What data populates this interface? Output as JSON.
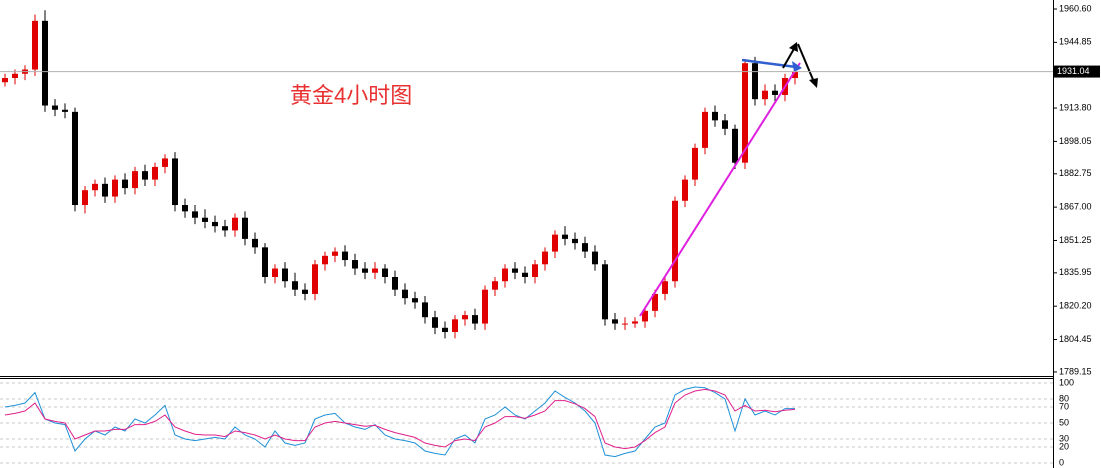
{
  "chart_data": {
    "type": "candlestick",
    "annotation": "黄金4小时图",
    "up_color": "#e00000",
    "down_color": "#000000",
    "ylim": [
      1787.7,
      1964.85
    ],
    "yticks": [
      {
        "value": 1960.6,
        "label": "1960.60"
      },
      1944.85,
      {
        "value": 1913.8,
        "label": "1913.80"
      },
      1898.05,
      1882.75,
      {
        "value": 1867.0,
        "label": "1867.00"
      },
      1851.25,
      1835.95,
      {
        "value": 1820.2,
        "label": "1820.20"
      },
      1804.45,
      1789.15
    ],
    "current_price": 1931.04,
    "open": [
      1926,
      1928,
      1930,
      1932,
      1955,
      1915,
      1913,
      1912,
      1868,
      1875,
      1878,
      1872,
      1880,
      1876,
      1884,
      1880,
      1886,
      1890,
      1868,
      1865,
      1862,
      1860,
      1858,
      1856,
      1862,
      1852,
      1848,
      1834,
      1838,
      1832,
      1828,
      1826,
      1840,
      1844,
      1846,
      1842,
      1838,
      1836,
      1838,
      1834,
      1828,
      1824,
      1822,
      1815,
      1810,
      1808,
      1814,
      1816,
      1812,
      1828,
      1832,
      1838,
      1836,
      1834,
      1840,
      1846,
      1854,
      1852,
      1850,
      1846,
      1840,
      1814,
      1812,
      1812,
      1813,
      1818,
      1826,
      1832,
      1870,
      1880,
      1895,
      1912,
      1908,
      1904,
      1888,
      1935,
      1918,
      1922,
      1920,
      1928
    ],
    "high": [
      1930,
      1932,
      1934,
      1958,
      1960,
      1918,
      1916,
      1914,
      1877,
      1880,
      1881,
      1882,
      1883,
      1886,
      1887,
      1888,
      1892,
      1893,
      1871,
      1868,
      1866,
      1863,
      1861,
      1864,
      1865,
      1855,
      1850,
      1840,
      1841,
      1836,
      1831,
      1842,
      1846,
      1848,
      1849,
      1845,
      1841,
      1841,
      1840,
      1837,
      1831,
      1827,
      1825,
      1818,
      1813,
      1816,
      1818,
      1819,
      1830,
      1834,
      1840,
      1841,
      1839,
      1842,
      1848,
      1856,
      1858,
      1855,
      1853,
      1849,
      1842,
      1817,
      1815,
      1815,
      1820,
      1828,
      1834,
      1872,
      1882,
      1897,
      1914,
      1915,
      1911,
      1906,
      1937,
      1938,
      1925,
      1925,
      1930,
      1934
    ],
    "low": [
      1924,
      1925,
      1927,
      1929,
      1912,
      1910,
      1909,
      1865,
      1864,
      1872,
      1869,
      1869,
      1873,
      1873,
      1877,
      1877,
      1883,
      1865,
      1862,
      1859,
      1857,
      1855,
      1853,
      1853,
      1849,
      1845,
      1831,
      1831,
      1829,
      1825,
      1823,
      1823,
      1837,
      1841,
      1839,
      1835,
      1833,
      1833,
      1831,
      1825,
      1821,
      1819,
      1812,
      1807,
      1805,
      1805,
      1811,
      1809,
      1809,
      1825,
      1829,
      1833,
      1831,
      1831,
      1837,
      1843,
      1849,
      1847,
      1843,
      1837,
      1811,
      1809,
      1809,
      1810,
      1810,
      1815,
      1823,
      1829,
      1867,
      1877,
      1892,
      1905,
      1901,
      1885,
      1885,
      1915,
      1915,
      1917,
      1917,
      1925
    ],
    "close": [
      1928,
      1930,
      1932,
      1955,
      1915,
      1913,
      1912,
      1868,
      1875,
      1878,
      1872,
      1880,
      1876,
      1884,
      1880,
      1886,
      1890,
      1868,
      1865,
      1862,
      1860,
      1858,
      1856,
      1862,
      1852,
      1848,
      1834,
      1838,
      1832,
      1828,
      1826,
      1840,
      1844,
      1846,
      1842,
      1838,
      1836,
      1838,
      1834,
      1828,
      1824,
      1822,
      1815,
      1810,
      1808,
      1814,
      1816,
      1812,
      1828,
      1832,
      1838,
      1836,
      1834,
      1840,
      1846,
      1854,
      1852,
      1850,
      1846,
      1840,
      1814,
      1812,
      1812,
      1813,
      1818,
      1826,
      1832,
      1870,
      1880,
      1895,
      1912,
      1908,
      1904,
      1888,
      1935,
      1918,
      1922,
      1920,
      1928,
      1931
    ],
    "indicator": {
      "ylim": [
        0,
        100
      ],
      "yticks": [
        100,
        80,
        70,
        50,
        30,
        20,
        0
      ],
      "series": [
        {
          "color": "#1e90d8",
          "values": [
            70,
            72,
            75,
            88,
            55,
            50,
            48,
            15,
            30,
            40,
            35,
            45,
            40,
            55,
            50,
            60,
            72,
            35,
            30,
            28,
            30,
            32,
            30,
            45,
            35,
            30,
            20,
            40,
            25,
            22,
            25,
            55,
            60,
            62,
            50,
            45,
            42,
            48,
            35,
            30,
            28,
            25,
            15,
            12,
            10,
            30,
            35,
            25,
            55,
            60,
            70,
            60,
            55,
            65,
            75,
            90,
            82,
            75,
            65,
            50,
            10,
            8,
            12,
            15,
            30,
            45,
            50,
            85,
            92,
            95,
            94,
            88,
            80,
            40,
            80,
            60,
            65,
            60,
            68,
            68
          ]
        },
        {
          "color": "#e0208a",
          "values": [
            60,
            62,
            65,
            75,
            55,
            52,
            50,
            30,
            35,
            40,
            40,
            42,
            42,
            48,
            48,
            52,
            60,
            45,
            40,
            36,
            35,
            35,
            33,
            40,
            38,
            35,
            30,
            35,
            30,
            28,
            28,
            45,
            50,
            52,
            50,
            48,
            46,
            47,
            42,
            38,
            35,
            32,
            25,
            22,
            20,
            28,
            30,
            28,
            45,
            50,
            58,
            58,
            56,
            60,
            65,
            78,
            78,
            74,
            68,
            58,
            25,
            20,
            18,
            20,
            28,
            38,
            45,
            75,
            85,
            90,
            92,
            90,
            85,
            65,
            72,
            65,
            66,
            64,
            66,
            67
          ]
        }
      ]
    }
  }
}
